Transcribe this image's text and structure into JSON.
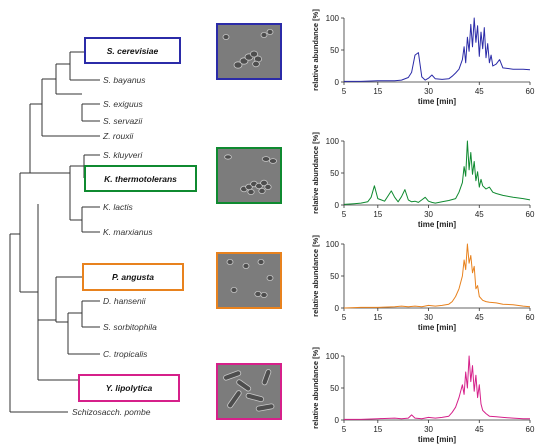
{
  "colors": {
    "cerevisiae": "#2b2ba8",
    "thermotolerans": "#0f8a30",
    "angusta": "#e8821e",
    "lipolytica": "#d6208a",
    "tree_line": "#333333",
    "micro_bg": "#7c7c7c"
  },
  "tree": {
    "highlighted": [
      {
        "key": "cerevisiae",
        "label": "S. cerevisiae"
      },
      {
        "key": "thermotolerans",
        "label": "K. thermotolerans"
      },
      {
        "key": "angusta",
        "label": "P. angusta"
      },
      {
        "key": "lipolytica",
        "label": "Y. lipolytica"
      }
    ],
    "species": [
      "S. bayanus",
      "S. exiguus",
      "S. servazii",
      "Z. rouxii",
      "S. kluyveri",
      "K. lactis",
      "K. marxianus",
      "D. hansenii",
      "S. sorbitophila",
      "C. tropicalis",
      "Schizosacch. pombe"
    ]
  },
  "micrographs": [
    {
      "label": "S. cerevisiae micrograph",
      "color_key": "cerevisiae"
    },
    {
      "label": "K. thermotolerans micrograph",
      "color_key": "thermotolerans"
    },
    {
      "label": "P. angusta micrograph",
      "color_key": "angusta"
    },
    {
      "label": "Y. lipolytica micrograph",
      "color_key": "lipolytica"
    }
  ],
  "chart_data": [
    {
      "type": "line",
      "series_color_key": "cerevisiae",
      "xlabel": "time [min]",
      "ylabel": "relative abundance [%]",
      "xlim": [
        5,
        60
      ],
      "ylim": [
        0,
        100
      ],
      "xticks": [
        5,
        15,
        30,
        45,
        60
      ],
      "yticks": [
        0,
        50,
        100
      ],
      "x": [
        5,
        10,
        15,
        20,
        22,
        24,
        25,
        26,
        27,
        28,
        29,
        30,
        31,
        32,
        34,
        36,
        37,
        38,
        39,
        40,
        40.5,
        41,
        41.5,
        42,
        42.5,
        43,
        43.5,
        44,
        44.5,
        45,
        45.5,
        46,
        46.5,
        47,
        47.5,
        48,
        48.5,
        49,
        50,
        51,
        52,
        55,
        58,
        60
      ],
      "y": [
        1,
        1,
        2,
        2,
        3,
        7,
        15,
        42,
        46,
        8,
        3,
        6,
        11,
        5,
        4,
        5,
        9,
        14,
        20,
        35,
        55,
        30,
        70,
        48,
        90,
        55,
        100,
        62,
        88,
        40,
        78,
        52,
        85,
        38,
        60,
        30,
        42,
        25,
        28,
        35,
        22,
        20,
        20,
        19
      ]
    },
    {
      "type": "line",
      "series_color_key": "thermotolerans",
      "xlabel": "time [min]",
      "ylabel": "relative abundance [%]",
      "xlim": [
        5,
        60
      ],
      "ylim": [
        0,
        100
      ],
      "xticks": [
        5,
        15,
        30,
        45,
        60
      ],
      "yticks": [
        0,
        50,
        100
      ],
      "x": [
        5,
        8,
        10,
        12,
        13,
        14,
        15,
        16,
        17,
        18,
        19,
        20,
        21,
        22,
        23,
        24,
        25,
        26,
        27,
        28,
        29,
        30,
        31,
        32,
        34,
        36,
        38,
        39,
        40,
        40.5,
        41,
        41.5,
        42,
        42.5,
        43,
        43.5,
        44,
        44.5,
        45,
        45.5,
        46,
        47,
        48,
        49,
        50,
        52,
        55,
        58,
        60
      ],
      "y": [
        1,
        2,
        3,
        5,
        12,
        30,
        10,
        8,
        6,
        14,
        22,
        12,
        5,
        13,
        24,
        8,
        5,
        6,
        4,
        8,
        12,
        6,
        4,
        3,
        5,
        7,
        10,
        20,
        35,
        60,
        45,
        100,
        55,
        82,
        48,
        68,
        38,
        52,
        28,
        40,
        30,
        25,
        28,
        20,
        18,
        15,
        12,
        10,
        8
      ]
    },
    {
      "type": "line",
      "series_color_key": "angusta",
      "xlabel": "time [min]",
      "ylabel": "relative abundance [%]",
      "xlim": [
        5,
        60
      ],
      "ylim": [
        0,
        100
      ],
      "xticks": [
        5,
        15,
        30,
        45,
        60
      ],
      "yticks": [
        0,
        50,
        100
      ],
      "x": [
        5,
        10,
        15,
        20,
        22,
        24,
        26,
        28,
        30,
        32,
        34,
        36,
        37,
        38,
        39,
        40,
        40.5,
        41,
        41.5,
        42,
        42.5,
        43,
        43.5,
        44,
        44.5,
        45,
        46,
        47,
        48,
        50,
        52,
        55,
        58,
        60
      ],
      "y": [
        0,
        1,
        1,
        2,
        3,
        2,
        3,
        2,
        4,
        3,
        4,
        6,
        10,
        18,
        30,
        50,
        75,
        60,
        100,
        70,
        82,
        55,
        65,
        30,
        35,
        18,
        12,
        10,
        9,
        8,
        6,
        5,
        3,
        2
      ]
    },
    {
      "type": "line",
      "series_color_key": "lipolytica",
      "xlabel": "time [min]",
      "ylabel": "relative abundance [%]",
      "xlim": [
        5,
        60
      ],
      "ylim": [
        0,
        100
      ],
      "xticks": [
        5,
        15,
        30,
        45,
        60
      ],
      "yticks": [
        0,
        50,
        100
      ],
      "x": [
        5,
        10,
        15,
        20,
        22,
        24,
        25,
        26,
        28,
        30,
        32,
        34,
        36,
        37,
        38,
        39,
        40,
        40.5,
        41,
        41.5,
        42,
        42.5,
        43,
        43.5,
        44,
        44.5,
        45,
        45.5,
        46,
        47,
        48,
        50,
        52,
        55,
        58,
        60
      ],
      "y": [
        1,
        1,
        2,
        3,
        2,
        3,
        8,
        3,
        2,
        4,
        3,
        4,
        6,
        12,
        20,
        35,
        55,
        40,
        75,
        50,
        100,
        60,
        85,
        45,
        70,
        35,
        55,
        25,
        15,
        10,
        6,
        5,
        4,
        3,
        2,
        2
      ]
    }
  ]
}
